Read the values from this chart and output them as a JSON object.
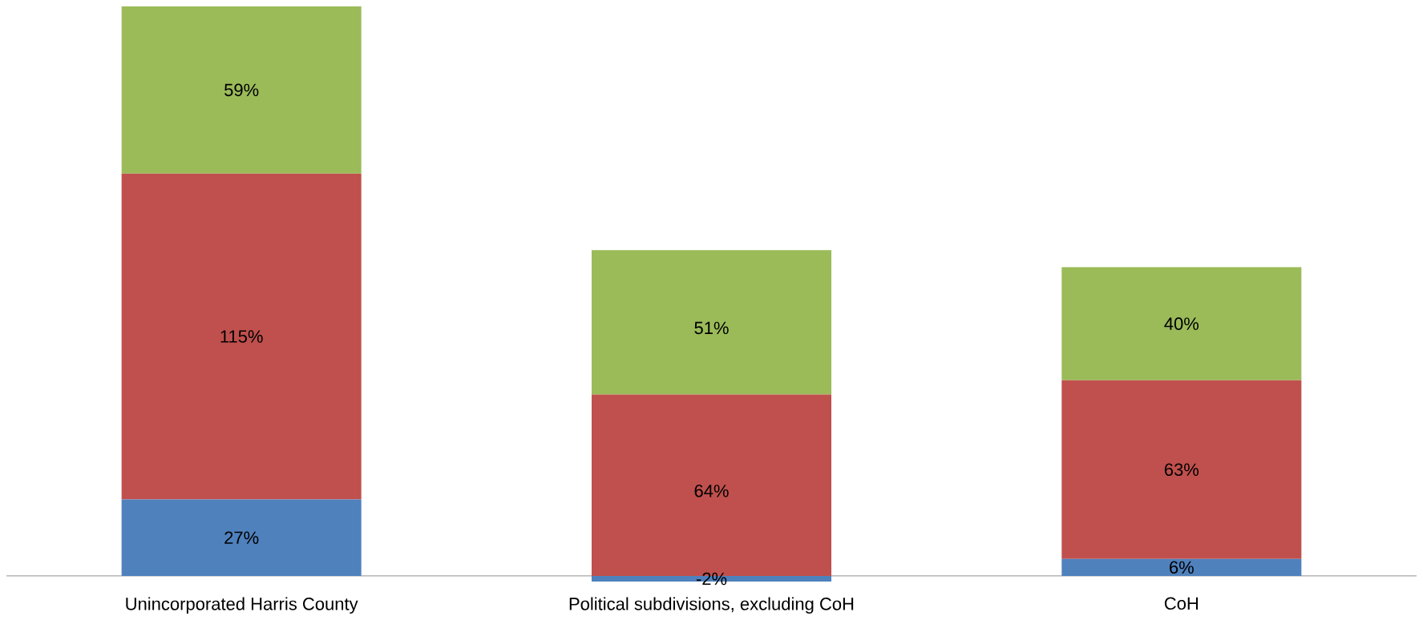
{
  "chart_data": {
    "type": "bar",
    "stacked": true,
    "categories": [
      "Unincorporated Harris County",
      "Political subdivisions, excluding CoH",
      "CoH"
    ],
    "series": [
      {
        "color": "#4f81bd",
        "values": [
          27,
          -2,
          6
        ],
        "value_labels": [
          "27%",
          "-2%",
          "6%"
        ]
      },
      {
        "color": "#c0504d",
        "values": [
          115,
          64,
          63
        ],
        "value_labels": [
          "115%",
          "64%",
          "63%"
        ]
      },
      {
        "color": "#9bbb59",
        "values": [
          59,
          51,
          40
        ],
        "value_labels": [
          "59%",
          "51%",
          "40%"
        ]
      }
    ]
  }
}
